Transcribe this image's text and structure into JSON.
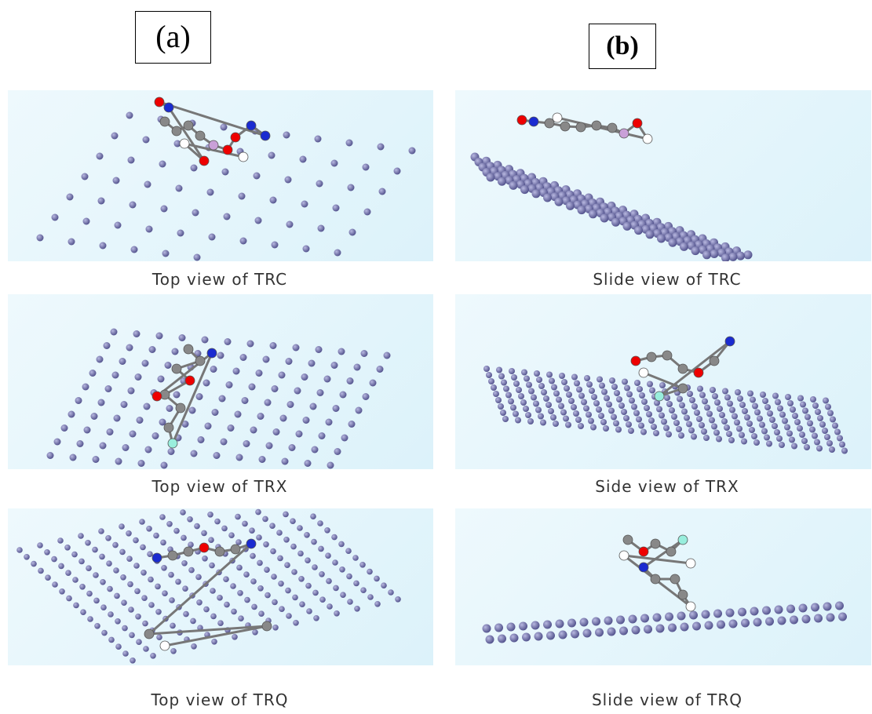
{
  "labels": [
    "(a)",
    "(b)"
  ],
  "panels": [
    {
      "caption": "Top view of TRC"
    },
    {
      "caption": "Slide view of TRC"
    },
    {
      "caption": "Top view of TRX"
    },
    {
      "caption": "Side view of TRX"
    },
    {
      "caption": "Top view of TRQ"
    },
    {
      "caption": "Slide view of TRQ"
    }
  ]
}
